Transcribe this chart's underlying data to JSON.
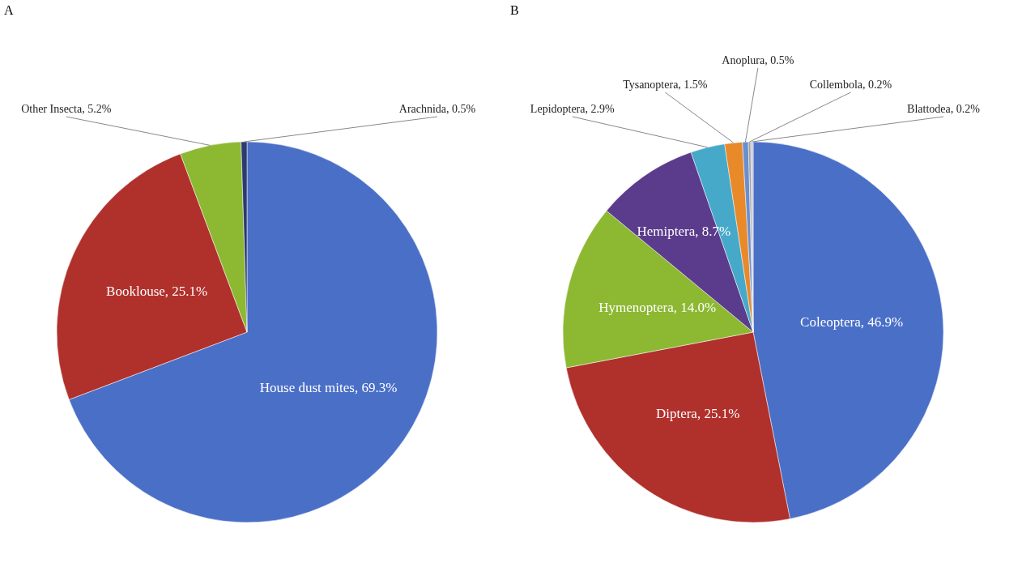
{
  "chart_data": [
    {
      "type": "pie",
      "title": "A",
      "legend": false,
      "categories": [
        "House dust mites",
        "Booklouse",
        "Other Insecta",
        "Arachnida"
      ],
      "values": [
        69.3,
        25.1,
        5.2,
        0.5
      ],
      "value_labels": [
        "69.3%",
        "25.1%",
        "5.2%",
        "0.5%"
      ],
      "colors": [
        "#4a6fc7",
        "#b0302c",
        "#8db832",
        "#2c3a6e"
      ]
    },
    {
      "type": "pie",
      "title": "B",
      "legend": false,
      "categories": [
        "Coleoptera",
        "Diptera",
        "Hymenoptera",
        "Hemiptera",
        "Lepidoptera",
        "Tysanoptera",
        "Anoplura",
        "Collembola",
        "Blattodea"
      ],
      "values": [
        46.9,
        25.1,
        14.0,
        8.7,
        2.9,
        1.5,
        0.5,
        0.2,
        0.2
      ],
      "value_labels": [
        "46.9%",
        "25.1%",
        "14.0%",
        "8.7%",
        "2.9%",
        "1.5%",
        "0.5%",
        "0.2%",
        "0.2%"
      ],
      "colors": [
        "#4a6fc7",
        "#b0302c",
        "#8db832",
        "#5b3c8c",
        "#46a9c9",
        "#e8892a",
        "#6a8fd0",
        "#a0a0a0",
        "#c8c8d8"
      ]
    }
  ]
}
